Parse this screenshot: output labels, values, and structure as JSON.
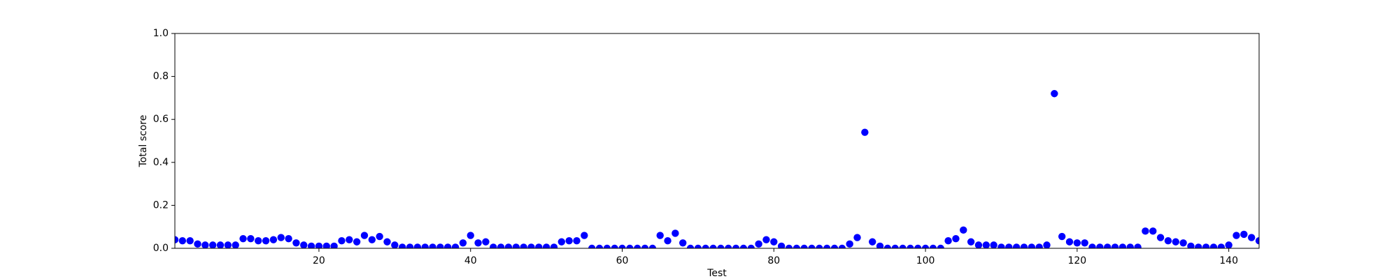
{
  "chart_data": {
    "type": "scatter",
    "x_label": "Test",
    "y_label": "Total score",
    "color": "#0000ff",
    "x": [
      1,
      2,
      3,
      4,
      5,
      6,
      7,
      8,
      9,
      10,
      11,
      12,
      13,
      14,
      15,
      16,
      17,
      18,
      19,
      20,
      21,
      22,
      23,
      24,
      25,
      26,
      27,
      28,
      29,
      30,
      31,
      32,
      33,
      34,
      35,
      36,
      37,
      38,
      39,
      40,
      41,
      42,
      43,
      44,
      45,
      46,
      47,
      48,
      49,
      50,
      51,
      52,
      53,
      54,
      55,
      56,
      57,
      58,
      59,
      60,
      61,
      62,
      63,
      64,
      65,
      66,
      67,
      68,
      69,
      70,
      71,
      72,
      73,
      74,
      75,
      76,
      77,
      78,
      79,
      80,
      81,
      82,
      83,
      84,
      85,
      86,
      87,
      88,
      89,
      90,
      91,
      92,
      93,
      94,
      95,
      96,
      97,
      98,
      99,
      100,
      101,
      102,
      103,
      104,
      105,
      106,
      107,
      108,
      109,
      110,
      111,
      112,
      113,
      114,
      115,
      116,
      117,
      118,
      119,
      120,
      121,
      122,
      123,
      124,
      125,
      126,
      127,
      128,
      129,
      130,
      131,
      132,
      133,
      134,
      135,
      136,
      137,
      138,
      139,
      140,
      141,
      142,
      143,
      144
    ],
    "values": [
      0.04,
      0.035,
      0.035,
      0.02,
      0.015,
      0.015,
      0.015,
      0.015,
      0.015,
      0.045,
      0.045,
      0.035,
      0.035,
      0.04,
      0.05,
      0.045,
      0.025,
      0.015,
      0.01,
      0.01,
      0.01,
      0.01,
      0.035,
      0.04,
      0.03,
      0.06,
      0.04,
      0.055,
      0.03,
      0.015,
      0.005,
      0.005,
      0.005,
      0.005,
      0.005,
      0.005,
      0.005,
      0.005,
      0.025,
      0.06,
      0.025,
      0.03,
      0.005,
      0.005,
      0.005,
      0.005,
      0.005,
      0.005,
      0.005,
      0.005,
      0.005,
      0.03,
      0.035,
      0.035,
      0.06,
      0,
      0,
      0,
      0,
      0,
      0,
      0,
      0,
      0,
      0.06,
      0.035,
      0.07,
      0.025,
      0,
      0,
      0,
      0,
      0,
      0,
      0,
      0,
      0,
      0.02,
      0.04,
      0.03,
      0.01,
      0,
      0,
      0,
      0,
      0,
      0,
      0,
      0,
      0.02,
      0.05,
      0.54,
      0.03,
      0.01,
      0,
      0,
      0,
      0,
      0,
      0,
      0,
      0,
      0.035,
      0.045,
      0.085,
      0.03,
      0.015,
      0.015,
      0.015,
      0.005,
      0.005,
      0.005,
      0.005,
      0.005,
      0.005,
      0.015,
      0.72,
      0.055,
      0.03,
      0.025,
      0.025,
      0.005,
      0.005,
      0.005,
      0.005,
      0.005,
      0.005,
      0.005,
      0.08,
      0.08,
      0.05,
      0.035,
      0.03,
      0.025,
      0.01,
      0.005,
      0.005,
      0.005,
      0.005,
      0.015,
      0.06,
      0.065,
      0.05,
      0.035
    ],
    "xlim": [
      1,
      144
    ],
    "ylim": [
      0,
      1
    ],
    "xticks": [
      20,
      40,
      60,
      80,
      100,
      120,
      140
    ],
    "yticks": [
      {
        "value": 0,
        "label": "0.0"
      },
      0.2,
      0.4,
      0.6,
      0.8,
      {
        "value": 1,
        "label": "1.0"
      }
    ]
  }
}
